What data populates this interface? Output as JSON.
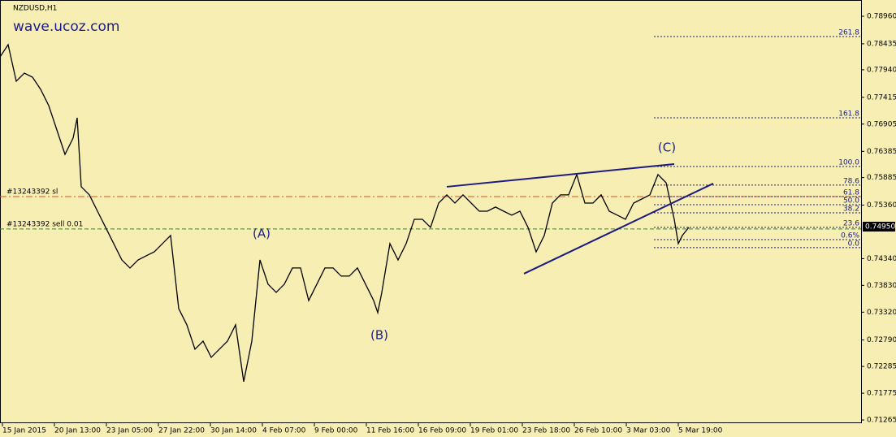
{
  "chart_data": {
    "type": "line",
    "title": "NZDUSD,H1",
    "watermark": "wave.ucoz.com",
    "color": "#000000",
    "x": [
      0,
      10,
      20,
      30,
      40,
      50,
      60,
      70,
      80,
      90,
      95,
      100,
      110,
      120,
      130,
      140,
      150,
      160,
      170,
      180,
      190,
      200,
      210,
      220,
      230,
      240,
      250,
      260,
      270,
      280,
      290,
      300,
      310,
      320,
      330,
      340,
      350,
      360,
      370,
      380,
      390,
      400,
      410,
      420,
      430,
      440,
      450,
      460,
      465,
      470,
      480,
      490,
      500,
      510,
      520,
      530,
      540,
      550,
      560,
      570,
      580,
      590,
      600,
      610,
      620,
      630,
      640,
      650,
      660,
      670,
      680,
      690,
      700,
      710,
      720,
      730,
      740,
      750,
      760,
      770,
      780,
      790,
      800,
      810,
      820,
      830,
      835,
      840,
      848
    ],
    "values": [
      0.78186,
      0.78419,
      0.77722,
      0.77877,
      0.77799,
      0.77567,
      0.77258,
      0.76793,
      0.76329,
      0.76638,
      0.77025,
      0.7571,
      0.75555,
      0.75245,
      0.74936,
      0.74626,
      0.74316,
      0.74162,
      0.74316,
      0.74394,
      0.74471,
      0.74626,
      0.74781,
      0.73388,
      0.73078,
      0.72614,
      0.72768,
      0.72459,
      0.72614,
      0.72768,
      0.73078,
      0.71994,
      0.72768,
      0.74316,
      0.73852,
      0.73697,
      0.73852,
      0.74162,
      0.74162,
      0.73542,
      0.73852,
      0.74162,
      0.74162,
      0.74007,
      0.74007,
      0.74162,
      0.73852,
      0.73542,
      0.7331,
      0.73697,
      0.74626,
      0.74316,
      0.74626,
      0.7509,
      0.7509,
      0.74936,
      0.754,
      0.75555,
      0.754,
      0.75555,
      0.754,
      0.75245,
      0.75245,
      0.75323,
      0.75245,
      0.75168,
      0.75245,
      0.74936,
      0.74471,
      0.74781,
      0.754,
      0.75555,
      0.75555,
      0.75942,
      0.754,
      0.754,
      0.75555,
      0.75245,
      0.75168,
      0.7509,
      0.754,
      0.75477,
      0.75555,
      0.75942,
      0.75787,
      0.7509,
      0.74626,
      0.74781,
      0.74936
    ],
    "xlim": [
      0,
      1060
    ],
    "ylim": [
      0.7927,
      0.71219
    ],
    "xticks": [
      {
        "value": 3,
        "label": "15 Jan 2015"
      },
      {
        "value": 67,
        "label": "20 Jan 13:00"
      },
      {
        "value": 131,
        "label": "23 Jan 05:00"
      },
      {
        "value": 195,
        "label": "27 Jan 22:00"
      },
      {
        "value": 259,
        "label": "30 Jan 14:00"
      },
      {
        "value": 323,
        "label": "4 Feb 07:00"
      },
      {
        "value": 387,
        "label": "9 Feb 00:00"
      },
      {
        "value": 451,
        "label": "11 Feb 16:00"
      },
      {
        "value": 515,
        "label": "16 Feb 09:00"
      },
      {
        "value": 579,
        "label": "19 Feb 01:00"
      },
      {
        "value": 643,
        "label": "23 Feb 18:00"
      },
      {
        "value": 707,
        "label": "26 Feb 10:00"
      },
      {
        "value": 771,
        "label": "3 Mar 03:00"
      },
      {
        "value": 835,
        "label": "5 Mar 19:00"
      }
    ],
    "yticks": [
      {
        "value": 0.7896,
        "label": "0.78960"
      },
      {
        "value": 0.78435,
        "label": "0.78435"
      },
      {
        "value": 0.7794,
        "label": "0.77940"
      },
      {
        "value": 0.77415,
        "label": "0.77415"
      },
      {
        "value": 0.76905,
        "label": "0.76905"
      },
      {
        "value": 0.76385,
        "label": "0.76385"
      },
      {
        "value": 0.75885,
        "label": "0.75885"
      },
      {
        "value": 0.7536,
        "label": "0.75360"
      },
      {
        "value": 0.7434,
        "label": "0.74340"
      },
      {
        "value": 0.7383,
        "label": "0.73830"
      },
      {
        "value": 0.7332,
        "label": "0.73320"
      },
      {
        "value": 0.7279,
        "label": "0.72790"
      },
      {
        "value": 0.72285,
        "label": "0.72285"
      },
      {
        "value": 0.71775,
        "label": "0.71775"
      },
      {
        "value": 0.71265,
        "label": "0.71265"
      }
    ],
    "current_price": {
      "value": 0.7495,
      "label": "0.74950"
    },
    "orders": [
      {
        "label": "#13243392 sl",
        "value": 0.75524,
        "color": "#e0501e"
      },
      {
        "label": "#13243392 sell 0.01",
        "value": 0.74905,
        "color": "#2e8b2e"
      }
    ],
    "fibonacci": {
      "x_start": 805,
      "color": "#1c1c80",
      "levels": [
        {
          "label": "261.8",
          "value": 0.78573
        },
        {
          "label": "161.8",
          "value": 0.77025
        },
        {
          "label": "100.0",
          "value": 0.76097
        },
        {
          "label": "78.6",
          "value": 0.75741
        },
        {
          "label": "61.8",
          "value": 0.75524
        },
        {
          "label": "50.0",
          "value": 0.75369
        },
        {
          "label": "38.2",
          "value": 0.75214
        },
        {
          "label": "23.6",
          "value": 0.74936
        },
        {
          "label": "0.6%",
          "value": 0.74703
        },
        {
          "label": "0.0",
          "value": 0.74549
        }
      ]
    },
    "trendlines": [
      {
        "color": "#1c1c80",
        "x": [
          550,
          830
        ],
        "y": [
          0.7571,
          0.76143
        ]
      },
      {
        "color": "#1c1c80",
        "x": [
          645,
          878
        ],
        "y": [
          0.74053,
          0.75772
        ]
      }
    ],
    "waves": [
      {
        "label": "(A)",
        "x": 322,
        "y": 0.74812
      },
      {
        "label": "(B)",
        "x": 467,
        "y": 0.72877
      },
      {
        "label": "(C)",
        "x": 821,
        "y": 0.76453
      }
    ]
  }
}
